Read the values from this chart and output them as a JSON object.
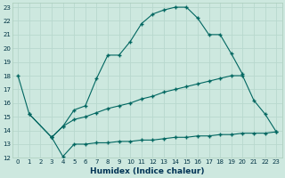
{
  "xlabel": "Humidex (Indice chaleur)",
  "xlim": [
    -0.5,
    23.5
  ],
  "ylim": [
    12,
    23.3
  ],
  "yticks": [
    12,
    13,
    14,
    15,
    16,
    17,
    18,
    19,
    20,
    21,
    22,
    23
  ],
  "xticks": [
    0,
    1,
    2,
    3,
    4,
    5,
    6,
    7,
    8,
    9,
    10,
    11,
    12,
    13,
    14,
    15,
    16,
    17,
    18,
    19,
    20,
    21,
    22,
    23
  ],
  "bg_color": "#cde8df",
  "grid_color": "#b8d8ce",
  "line_color": "#006660",
  "lines": [
    {
      "x": [
        0,
        1,
        3,
        4,
        5,
        6,
        7,
        8,
        9,
        10,
        11,
        12,
        13,
        14,
        15,
        16,
        17,
        18,
        19,
        20
      ],
      "y": [
        18,
        15.2,
        13.5,
        14.3,
        15.5,
        15.8,
        17.8,
        19.5,
        19.5,
        20.5,
        21.8,
        22.5,
        22.8,
        23.0,
        23.0,
        22.2,
        21.0,
        21.0,
        19.6,
        18.1
      ]
    },
    {
      "x": [
        1,
        3,
        4,
        5,
        6,
        7,
        8,
        9,
        10,
        11,
        12,
        13,
        14,
        15,
        16,
        17,
        18,
        19,
        20,
        21,
        22,
        23
      ],
      "y": [
        15.2,
        13.5,
        14.3,
        14.8,
        15.0,
        15.3,
        15.6,
        15.8,
        16.0,
        16.3,
        16.5,
        16.8,
        17.0,
        17.2,
        17.4,
        17.6,
        17.8,
        18.0,
        18.0,
        16.2,
        15.2,
        13.9
      ]
    },
    {
      "x": [
        3,
        4,
        5,
        6,
        7,
        8,
        9,
        10,
        11,
        12,
        13,
        14,
        15,
        16,
        17,
        18,
        19,
        20,
        21,
        22,
        23
      ],
      "y": [
        13.5,
        12.1,
        13.0,
        13.0,
        13.1,
        13.1,
        13.2,
        13.2,
        13.3,
        13.3,
        13.4,
        13.5,
        13.5,
        13.6,
        13.6,
        13.7,
        13.7,
        13.8,
        13.8,
        13.8,
        13.9
      ]
    }
  ]
}
